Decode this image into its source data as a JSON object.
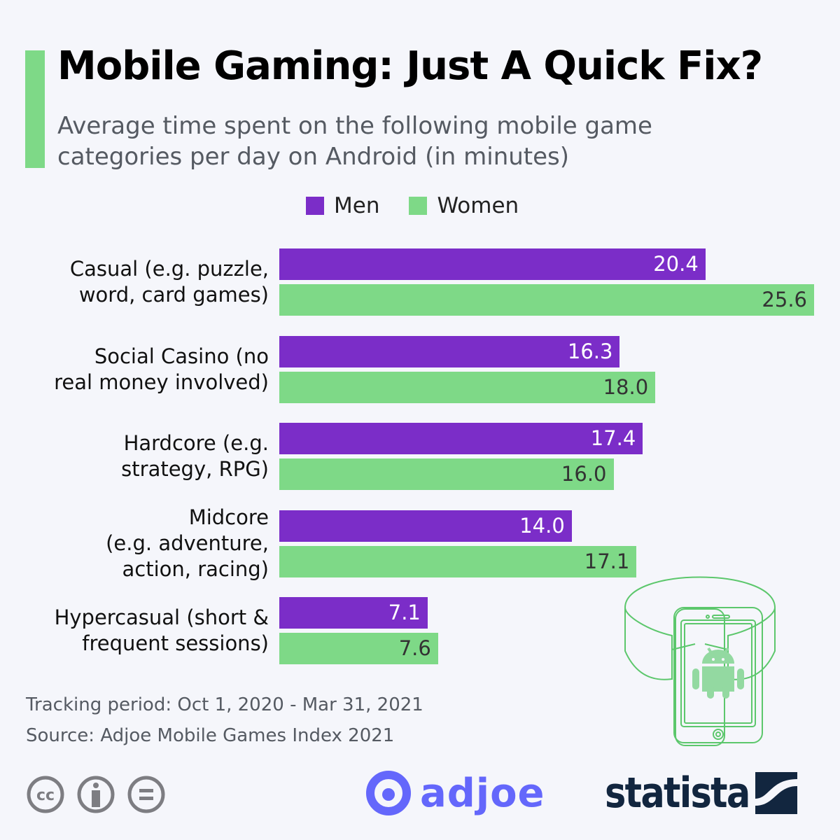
{
  "title": "Mobile Gaming: Just A Quick Fix?",
  "subtitle": "Average time spent on the following mobile game categories per day on Android (in minutes)",
  "colors": {
    "men": "#7b2dc8",
    "women": "#7ed987",
    "accent": "#7ed987",
    "statista": "#12263f",
    "adjoe": "#6467fb"
  },
  "chart_data": {
    "type": "bar",
    "orientation": "horizontal",
    "title": "Mobile Gaming: Just A Quick Fix?",
    "categories": [
      "Casual (e.g. puzzle, word, card games)",
      "Social Casino (no real money involved)",
      "Hardcore (e.g. strategy, RPG)",
      "Midcore (e.g. adventure, action, racing)",
      "Hypercasual (short & frequent sessions)"
    ],
    "category_lines": [
      [
        "Casual (e.g. puzzle,",
        "word, card games)"
      ],
      [
        "Social Casino (no",
        "real money involved)"
      ],
      [
        "Hardcore (e.g.",
        "strategy, RPG)"
      ],
      [
        "Midcore",
        "(e.g. adventure,",
        "action, racing)"
      ],
      [
        "Hypercasual (short &",
        "frequent sessions)"
      ]
    ],
    "series": [
      {
        "name": "Men",
        "values": [
          20.4,
          16.3,
          17.4,
          14.0,
          7.1
        ],
        "labels": [
          "20.4",
          "16.3",
          "17.4",
          "14.0",
          "7.1"
        ]
      },
      {
        "name": "Women",
        "values": [
          25.6,
          18.0,
          16.0,
          17.1,
          7.6
        ],
        "labels": [
          "25.6",
          "18.0",
          "16.0",
          "17.1",
          "7.6"
        ]
      }
    ],
    "xlim": [
      0,
      25.6
    ],
    "legend_position": "top",
    "grid": false
  },
  "footer": {
    "tracking": "Tracking period: Oct 1, 2020 - Mar 31, 2021",
    "source": "Source: Adjoe Mobile Games Index 2021"
  },
  "logos": {
    "adjoe": "adjoe",
    "statista": "statista"
  }
}
